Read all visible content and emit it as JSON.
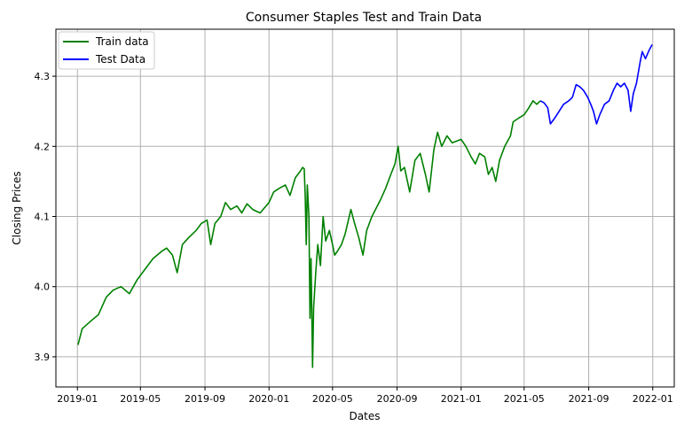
{
  "chart_data": {
    "type": "line",
    "title": "Consumer Staples Test and Train Data",
    "xlabel": "Dates",
    "ylabel": "Closing Prices",
    "x_ticks": [
      "2019-01",
      "2019-05",
      "2019-09",
      "2020-01",
      "2020-05",
      "2020-09",
      "2021-01",
      "2021-05",
      "2021-09",
      "2022-01"
    ],
    "y_ticks": [
      "3.9",
      "4.0",
      "4.1",
      "4.2",
      "4.3"
    ],
    "xlim": [
      "2018-11-21",
      "2022-02-11"
    ],
    "ylim": [
      3.857,
      4.367
    ],
    "grid": true,
    "legend_position": "top-left",
    "series": [
      {
        "name": "Train data",
        "color": "#008000",
        "points": [
          [
            "2019-01-02",
            3.917
          ],
          [
            "2019-01-10",
            3.94
          ],
          [
            "2019-01-25",
            3.95
          ],
          [
            "2019-02-10",
            3.96
          ],
          [
            "2019-02-25",
            3.985
          ],
          [
            "2019-03-10",
            3.995
          ],
          [
            "2019-03-25",
            4.0
          ],
          [
            "2019-04-10",
            3.99
          ],
          [
            "2019-04-25",
            4.01
          ],
          [
            "2019-05-10",
            4.025
          ],
          [
            "2019-05-25",
            4.04
          ],
          [
            "2019-06-10",
            4.05
          ],
          [
            "2019-06-20",
            4.055
          ],
          [
            "2019-07-01",
            4.045
          ],
          [
            "2019-07-10",
            4.02
          ],
          [
            "2019-07-20",
            4.06
          ],
          [
            "2019-08-01",
            4.07
          ],
          [
            "2019-08-15",
            4.08
          ],
          [
            "2019-08-25",
            4.09
          ],
          [
            "2019-09-05",
            4.095
          ],
          [
            "2019-09-12",
            4.06
          ],
          [
            "2019-09-20",
            4.09
          ],
          [
            "2019-10-01",
            4.1
          ],
          [
            "2019-10-10",
            4.12
          ],
          [
            "2019-10-20",
            4.11
          ],
          [
            "2019-11-01",
            4.115
          ],
          [
            "2019-11-10",
            4.105
          ],
          [
            "2019-11-20",
            4.118
          ],
          [
            "2019-12-01",
            4.11
          ],
          [
            "2019-12-15",
            4.105
          ],
          [
            "2020-01-01",
            4.12
          ],
          [
            "2020-01-10",
            4.135
          ],
          [
            "2020-01-20",
            4.14
          ],
          [
            "2020-02-01",
            4.145
          ],
          [
            "2020-02-10",
            4.13
          ],
          [
            "2020-02-20",
            4.155
          ],
          [
            "2020-03-01",
            4.165
          ],
          [
            "2020-03-05",
            4.17
          ],
          [
            "2020-03-08",
            4.168
          ],
          [
            "2020-03-10",
            4.13
          ],
          [
            "2020-03-12",
            4.06
          ],
          [
            "2020-03-14",
            4.145
          ],
          [
            "2020-03-17",
            4.1
          ],
          [
            "2020-03-19",
            3.955
          ],
          [
            "2020-03-21",
            4.04
          ],
          [
            "2020-03-24",
            3.885
          ],
          [
            "2020-03-26",
            3.97
          ],
          [
            "2020-03-30",
            4.02
          ],
          [
            "2020-04-03",
            4.06
          ],
          [
            "2020-04-08",
            4.03
          ],
          [
            "2020-04-13",
            4.1
          ],
          [
            "2020-04-18",
            4.065
          ],
          [
            "2020-04-25",
            4.08
          ],
          [
            "2020-05-01",
            4.06
          ],
          [
            "2020-05-05",
            4.045
          ],
          [
            "2020-05-10",
            4.05
          ],
          [
            "2020-05-18",
            4.06
          ],
          [
            "2020-05-25",
            4.075
          ],
          [
            "2020-06-05",
            4.11
          ],
          [
            "2020-06-12",
            4.09
          ],
          [
            "2020-06-20",
            4.07
          ],
          [
            "2020-06-28",
            4.045
          ],
          [
            "2020-07-05",
            4.08
          ],
          [
            "2020-07-15",
            4.1
          ],
          [
            "2020-08-01",
            4.125
          ],
          [
            "2020-08-10",
            4.14
          ],
          [
            "2020-08-20",
            4.16
          ],
          [
            "2020-08-28",
            4.175
          ],
          [
            "2020-09-03",
            4.2
          ],
          [
            "2020-09-08",
            4.165
          ],
          [
            "2020-09-15",
            4.17
          ],
          [
            "2020-09-25",
            4.135
          ],
          [
            "2020-10-05",
            4.18
          ],
          [
            "2020-10-15",
            4.19
          ],
          [
            "2020-10-25",
            4.16
          ],
          [
            "2020-11-01",
            4.135
          ],
          [
            "2020-11-10",
            4.195
          ],
          [
            "2020-11-17",
            4.22
          ],
          [
            "2020-11-25",
            4.2
          ],
          [
            "2020-12-05",
            4.215
          ],
          [
            "2020-12-15",
            4.205
          ],
          [
            "2021-01-01",
            4.21
          ],
          [
            "2021-01-10",
            4.2
          ],
          [
            "2021-01-20",
            4.185
          ],
          [
            "2021-01-28",
            4.175
          ],
          [
            "2021-02-05",
            4.19
          ],
          [
            "2021-02-15",
            4.185
          ],
          [
            "2021-02-22",
            4.16
          ],
          [
            "2021-03-01",
            4.17
          ],
          [
            "2021-03-08",
            4.15
          ],
          [
            "2021-03-15",
            4.18
          ],
          [
            "2021-03-25",
            4.2
          ],
          [
            "2021-04-05",
            4.215
          ],
          [
            "2021-04-10",
            4.235
          ],
          [
            "2021-04-20",
            4.24
          ],
          [
            "2021-05-01",
            4.245
          ],
          [
            "2021-05-10",
            4.255
          ],
          [
            "2021-05-18",
            4.265
          ],
          [
            "2021-05-25",
            4.26
          ],
          [
            "2021-06-01",
            4.265
          ]
        ]
      },
      {
        "name": "Test Data",
        "color": "#0000ff",
        "points": [
          [
            "2021-06-01",
            4.265
          ],
          [
            "2021-06-08",
            4.262
          ],
          [
            "2021-06-15",
            4.255
          ],
          [
            "2021-06-20",
            4.232
          ],
          [
            "2021-06-28",
            4.24
          ],
          [
            "2021-07-05",
            4.248
          ],
          [
            "2021-07-15",
            4.26
          ],
          [
            "2021-07-25",
            4.265
          ],
          [
            "2021-08-01",
            4.27
          ],
          [
            "2021-08-08",
            4.288
          ],
          [
            "2021-08-15",
            4.285
          ],
          [
            "2021-08-22",
            4.28
          ],
          [
            "2021-08-30",
            4.27
          ],
          [
            "2021-09-05",
            4.26
          ],
          [
            "2021-09-10",
            4.25
          ],
          [
            "2021-09-16",
            4.232
          ],
          [
            "2021-09-22",
            4.245
          ],
          [
            "2021-10-01",
            4.26
          ],
          [
            "2021-10-10",
            4.265
          ],
          [
            "2021-10-18",
            4.28
          ],
          [
            "2021-10-25",
            4.29
          ],
          [
            "2021-11-01",
            4.285
          ],
          [
            "2021-11-08",
            4.29
          ],
          [
            "2021-11-15",
            4.28
          ],
          [
            "2021-11-20",
            4.25
          ],
          [
            "2021-11-25",
            4.275
          ],
          [
            "2021-12-01",
            4.29
          ],
          [
            "2021-12-08",
            4.32
          ],
          [
            "2021-12-12",
            4.335
          ],
          [
            "2021-12-18",
            4.325
          ],
          [
            "2021-12-25",
            4.337
          ],
          [
            "2021-12-31",
            4.345
          ]
        ]
      }
    ]
  }
}
